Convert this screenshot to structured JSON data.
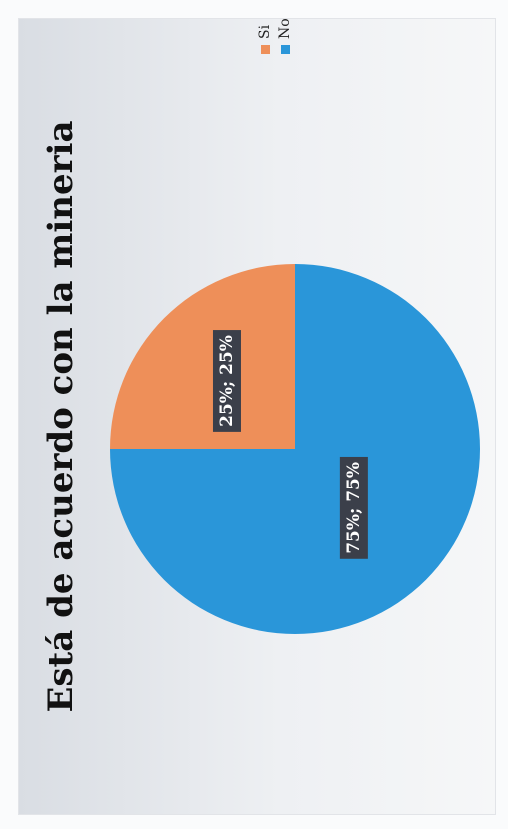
{
  "chart_data": {
    "type": "pie",
    "title": "Está de acuerdo con la mineria",
    "categories": [
      "Si",
      "No"
    ],
    "values": [
      25,
      75
    ],
    "data_labels": [
      "25%; 25%",
      "75%; 75%"
    ],
    "colors": [
      "#ee8f59",
      "#2a96d9"
    ],
    "legend": {
      "placement": "right",
      "entries": [
        "Si",
        "No"
      ]
    }
  }
}
